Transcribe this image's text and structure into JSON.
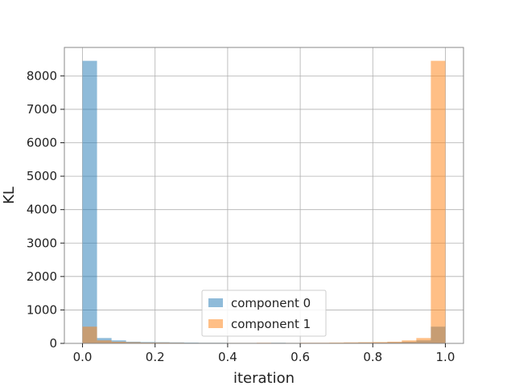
{
  "chart_data": {
    "type": "bar",
    "title": "",
    "xlabel": "iteration",
    "ylabel": "KL",
    "xlim": [
      -0.05,
      1.05
    ],
    "ylim": [
      0,
      8850
    ],
    "bin_width": 0.04,
    "xticks": [
      0.0,
      0.2,
      0.4,
      0.6,
      0.8,
      1.0
    ],
    "xtick_labels": [
      "0.0",
      "0.2",
      "0.4",
      "0.6",
      "0.8",
      "1.0"
    ],
    "yticks": [
      0,
      1000,
      2000,
      3000,
      4000,
      5000,
      6000,
      7000,
      8000
    ],
    "ytick_labels": [
      "0",
      "1000",
      "2000",
      "3000",
      "4000",
      "5000",
      "6000",
      "7000",
      "8000"
    ],
    "grid": true,
    "legend_position": "lower center",
    "bin_starts": [
      0.0,
      0.04,
      0.08,
      0.12,
      0.16,
      0.2,
      0.24,
      0.28,
      0.32,
      0.36,
      0.4,
      0.44,
      0.48,
      0.52,
      0.56,
      0.6,
      0.64,
      0.68,
      0.72,
      0.76,
      0.8,
      0.84,
      0.88,
      0.92,
      0.96
    ],
    "series": [
      {
        "name": "component 0",
        "color": "#1f77b4",
        "values": [
          8450,
          160,
          90,
          50,
          40,
          35,
          30,
          25,
          20,
          20,
          15,
          15,
          15,
          20,
          15,
          15,
          15,
          15,
          20,
          25,
          25,
          35,
          50,
          90,
          500
        ]
      },
      {
        "name": "component 1",
        "color": "#ff7f0e",
        "values": [
          500,
          90,
          50,
          35,
          25,
          25,
          20,
          15,
          15,
          15,
          15,
          15,
          20,
          15,
          15,
          20,
          20,
          25,
          30,
          35,
          40,
          50,
          90,
          160,
          8450
        ]
      }
    ]
  }
}
